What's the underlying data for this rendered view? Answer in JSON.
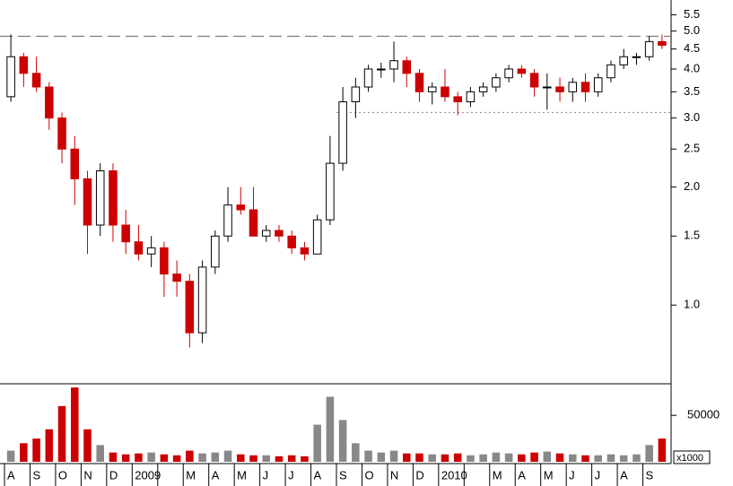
{
  "chart_data": {
    "type": "candlestick",
    "log_scale": true,
    "categories": [
      "A",
      "S",
      "O",
      "N",
      "D",
      "2009",
      null,
      "M",
      "A",
      "M",
      "J",
      "J",
      "A",
      "S",
      "O",
      "N",
      "D",
      "2010",
      null,
      "M",
      "A",
      "M",
      "J",
      "J",
      "A",
      "S"
    ],
    "open": [
      3.4,
      4.3,
      3.9,
      3.6,
      3.0,
      2.5,
      2.1,
      1.6,
      2.2,
      1.6,
      1.45,
      1.35,
      1.4,
      1.2,
      1.15,
      0.85,
      1.25,
      1.5,
      1.8,
      1.75,
      1.5,
      1.55,
      1.5,
      1.4,
      1.35,
      1.65,
      2.3,
      3.3,
      3.6,
      4.0,
      4.0,
      4.2,
      3.9,
      3.5,
      3.6,
      3.4,
      3.3,
      3.5,
      3.6,
      3.8,
      4.0,
      3.9,
      3.6,
      3.6,
      3.5,
      3.7,
      3.5,
      3.8,
      4.1,
      4.3,
      4.3,
      4.7
    ],
    "high": [
      4.9,
      4.4,
      4.3,
      3.7,
      3.1,
      2.7,
      2.2,
      2.3,
      2.3,
      1.75,
      1.6,
      1.5,
      1.45,
      1.3,
      1.2,
      1.3,
      1.55,
      2.0,
      2.0,
      2.0,
      1.6,
      1.6,
      1.55,
      1.45,
      1.7,
      2.7,
      3.6,
      3.8,
      4.1,
      4.15,
      4.7,
      4.3,
      4.0,
      3.7,
      4.0,
      3.5,
      3.6,
      3.7,
      3.9,
      4.1,
      4.1,
      4.0,
      3.9,
      3.8,
      3.8,
      3.9,
      3.9,
      4.2,
      4.5,
      4.4,
      4.85,
      4.9
    ],
    "low": [
      3.3,
      3.6,
      3.5,
      2.8,
      2.3,
      1.8,
      1.35,
      1.5,
      1.45,
      1.35,
      1.3,
      1.25,
      1.05,
      1.05,
      0.78,
      0.8,
      1.2,
      1.45,
      1.7,
      1.5,
      1.45,
      1.45,
      1.35,
      1.3,
      1.35,
      1.6,
      2.2,
      3.0,
      3.5,
      3.8,
      3.7,
      3.6,
      3.3,
      3.25,
      3.3,
      3.05,
      3.2,
      3.4,
      3.5,
      3.7,
      3.8,
      3.4,
      3.15,
      3.3,
      3.3,
      3.3,
      3.4,
      3.7,
      4.0,
      4.1,
      4.2,
      4.5
    ],
    "close": [
      4.3,
      3.9,
      3.6,
      3.0,
      2.5,
      2.1,
      1.6,
      2.2,
      1.6,
      1.45,
      1.35,
      1.4,
      1.2,
      1.15,
      0.85,
      1.25,
      1.5,
      1.8,
      1.75,
      1.5,
      1.55,
      1.5,
      1.4,
      1.35,
      1.65,
      2.3,
      3.3,
      3.6,
      4.0,
      4.0,
      4.2,
      3.9,
      3.5,
      3.6,
      3.4,
      3.3,
      3.5,
      3.6,
      3.8,
      4.0,
      3.9,
      3.6,
      3.6,
      3.5,
      3.7,
      3.5,
      3.8,
      4.1,
      4.3,
      4.3,
      4.7,
      4.6
    ],
    "volume": [
      12000,
      20000,
      25000,
      35000,
      60000,
      80000,
      35000,
      18000,
      10000,
      8000,
      9000,
      10000,
      8000,
      7000,
      12000,
      9000,
      10000,
      12000,
      8000,
      7000,
      7000,
      6000,
      7000,
      6000,
      40000,
      70000,
      45000,
      20000,
      12000,
      10000,
      12000,
      9000,
      9000,
      8000,
      8000,
      9000,
      7000,
      8000,
      10000,
      9000,
      8000,
      10000,
      11000,
      9000,
      8000,
      7000,
      7000,
      8000,
      7000,
      8000,
      18000,
      25000
    ],
    "ylim": [
      0.63,
      6.0
    ],
    "yticks": [
      {
        "value": 1,
        "label": "1.0"
      },
      1.5,
      {
        "value": 2,
        "label": "2.0"
      },
      2.5,
      {
        "value": 3,
        "label": "3.0"
      },
      3.5,
      {
        "value": 4,
        "label": "4.0"
      },
      4.5,
      {
        "value": 5,
        "label": "5.0"
      },
      5.5
    ],
    "volume_lim": [
      0,
      84000
    ],
    "volume_ticks": [
      50000
    ],
    "volume_unit": "x1000",
    "up_color": "#000000",
    "down_color": "#cc0000",
    "reference_lines": [
      {
        "value": 4.85,
        "style": "dashed"
      },
      {
        "value": 3.1,
        "style": "dotted"
      }
    ]
  }
}
